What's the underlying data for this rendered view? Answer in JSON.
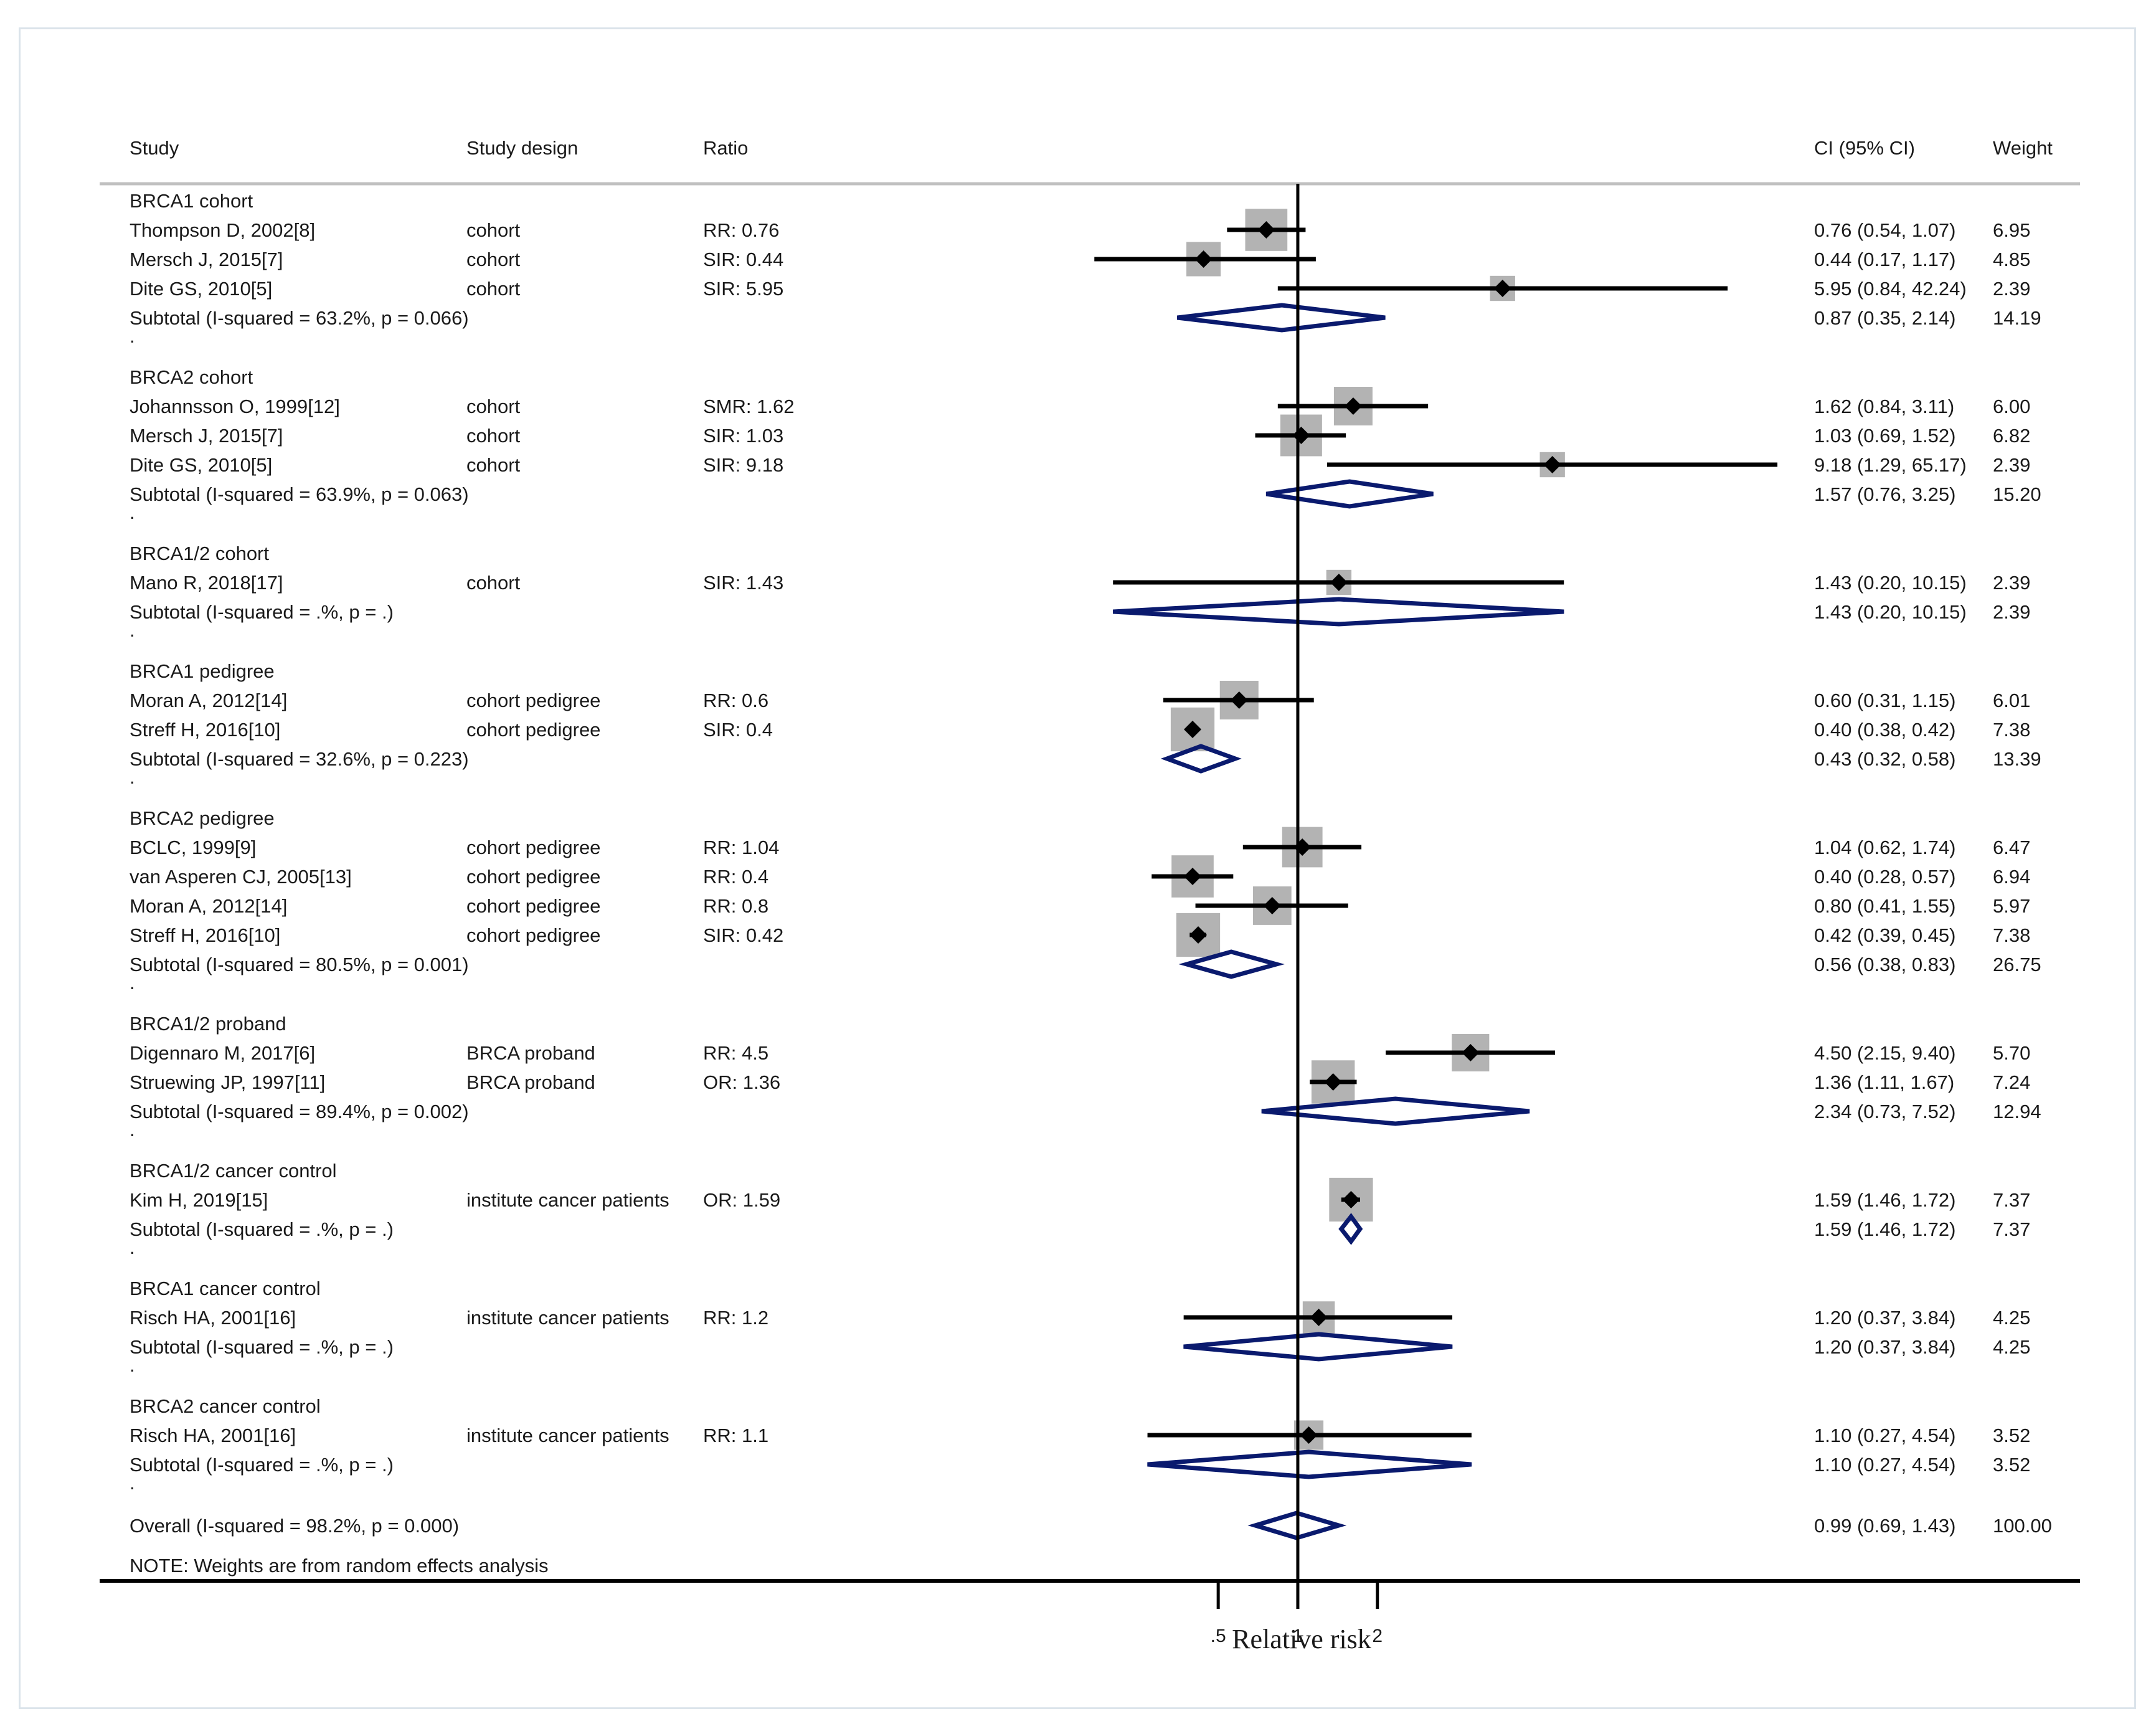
{
  "chart_data": {
    "type": "forest",
    "columns": {
      "study": "Study",
      "design": "Study design",
      "ratio": "Ratio",
      "ci": "CI (95% CI)",
      "weight": "Weight"
    },
    "xlabel": "Relative risk",
    "x_ticks": [
      {
        "value": 0.5,
        "label": ".5"
      },
      {
        "value": 1,
        "label": "1"
      },
      {
        "value": 2,
        "label": "2"
      }
    ],
    "xlim": [
      0.133,
      73
    ],
    "null_line": 1,
    "note": "NOTE: Weights are from random effects analysis",
    "colors": {
      "text": "#1a1a1a",
      "line": "#000000",
      "box": "#b3b3b3",
      "diamond": "#0a1a6e",
      "rule": "#c0c0c0"
    },
    "groups": [
      {
        "name": "BRCA1 cohort",
        "studies": [
          {
            "study": "Thompson D, 2002[8]",
            "design": "cohort",
            "ratio": "RR: 0.76",
            "est": 0.76,
            "lo": 0.54,
            "hi": 1.07,
            "ci": "0.76 (0.54, 1.07)",
            "weight": "6.95"
          },
          {
            "study": "Mersch J, 2015[7]",
            "design": "cohort",
            "ratio": "SIR: 0.44",
            "est": 0.44,
            "lo": 0.17,
            "hi": 1.17,
            "ci": "0.44 (0.17, 1.17)",
            "weight": "4.85"
          },
          {
            "study": "Dite GS, 2010[5]",
            "design": "cohort",
            "ratio": "SIR: 5.95",
            "est": 5.95,
            "lo": 0.84,
            "hi": 42.24,
            "ci": "5.95 (0.84, 42.24)",
            "weight": "2.39"
          }
        ],
        "subtotal": {
          "label": "Subtotal   (I-squared = 63.2%, p = 0.066)",
          "est": 0.87,
          "lo": 0.35,
          "hi": 2.14,
          "ci": "0.87 (0.35, 2.14)",
          "weight": "14.19"
        }
      },
      {
        "name": "BRCA2 cohort",
        "studies": [
          {
            "study": "Johannsson O, 1999[12]",
            "design": "cohort",
            "ratio": "SMR: 1.62",
            "est": 1.62,
            "lo": 0.84,
            "hi": 3.11,
            "ci": "1.62 (0.84, 3.11)",
            "weight": "6.00"
          },
          {
            "study": "Mersch J, 2015[7]",
            "design": "cohort",
            "ratio": "SIR: 1.03",
            "est": 1.03,
            "lo": 0.69,
            "hi": 1.52,
            "ci": "1.03 (0.69, 1.52)",
            "weight": "6.82"
          },
          {
            "study": "Dite GS, 2010[5]",
            "design": "cohort",
            "ratio": "SIR: 9.18",
            "est": 9.18,
            "lo": 1.29,
            "hi": 65.17,
            "ci": "9.18 (1.29, 65.17)",
            "weight": "2.39"
          }
        ],
        "subtotal": {
          "label": "Subtotal   (I-squared = 63.9%, p = 0.063)",
          "est": 1.57,
          "lo": 0.76,
          "hi": 3.25,
          "ci": "1.57 (0.76, 3.25)",
          "weight": "15.20"
        }
      },
      {
        "name": "BRCA1/2 cohort",
        "studies": [
          {
            "study": "Mano R, 2018[17]",
            "design": "cohort",
            "ratio": "SIR: 1.43",
            "est": 1.43,
            "lo": 0.2,
            "hi": 10.15,
            "ci": "1.43 (0.20, 10.15)",
            "weight": "2.39"
          }
        ],
        "subtotal": {
          "label": "Subtotal   (I-squared = .%, p = .)",
          "est": 1.43,
          "lo": 0.2,
          "hi": 10.15,
          "ci": "1.43 (0.20, 10.15)",
          "weight": "2.39"
        }
      },
      {
        "name": "BRCA1 pedigree",
        "studies": [
          {
            "study": "Moran A, 2012[14]",
            "design": "cohort pedigree",
            "ratio": "RR: 0.6",
            "est": 0.6,
            "lo": 0.31,
            "hi": 1.15,
            "ci": "0.60 (0.31, 1.15)",
            "weight": "6.01"
          },
          {
            "study": "Streff H, 2016[10]",
            "design": "cohort pedigree",
            "ratio": "SIR: 0.4",
            "est": 0.4,
            "lo": 0.38,
            "hi": 0.42,
            "ci": "0.40 (0.38, 0.42)",
            "weight": "7.38"
          }
        ],
        "subtotal": {
          "label": "Subtotal   (I-squared = 32.6%, p = 0.223)",
          "est": 0.43,
          "lo": 0.32,
          "hi": 0.58,
          "ci": "0.43 (0.32, 0.58)",
          "weight": "13.39"
        }
      },
      {
        "name": "BRCA2 pedigree",
        "studies": [
          {
            "study": "BCLC, 1999[9]",
            "design": "cohort pedigree",
            "ratio": "RR: 1.04",
            "est": 1.04,
            "lo": 0.62,
            "hi": 1.74,
            "ci": "1.04 (0.62, 1.74)",
            "weight": "6.47"
          },
          {
            "study": "van Asperen CJ, 2005[13]",
            "design": "cohort pedigree",
            "ratio": "RR: 0.4",
            "est": 0.4,
            "lo": 0.28,
            "hi": 0.57,
            "ci": "0.40 (0.28, 0.57)",
            "weight": "6.94"
          },
          {
            "study": "Moran A, 2012[14]",
            "design": "cohort pedigree",
            "ratio": "RR: 0.8",
            "est": 0.8,
            "lo": 0.41,
            "hi": 1.55,
            "ci": "0.80 (0.41, 1.55)",
            "weight": "5.97"
          },
          {
            "study": "Streff H, 2016[10]",
            "design": "cohort pedigree",
            "ratio": "SIR: 0.42",
            "est": 0.42,
            "lo": 0.39,
            "hi": 0.45,
            "ci": "0.42 (0.39, 0.45)",
            "weight": "7.38"
          }
        ],
        "subtotal": {
          "label": "Subtotal   (I-squared = 80.5%, p = 0.001)",
          "est": 0.56,
          "lo": 0.38,
          "hi": 0.83,
          "ci": "0.56 (0.38, 0.83)",
          "weight": "26.75"
        }
      },
      {
        "name": "BRCA1/2 proband",
        "studies": [
          {
            "study": "Digennaro M, 2017[6]",
            "design": "BRCA proband",
            "ratio": "RR: 4.5",
            "est": 4.5,
            "lo": 2.15,
            "hi": 9.4,
            "ci": "4.50 (2.15, 9.40)",
            "weight": "5.70"
          },
          {
            "study": "Struewing JP, 1997[11]",
            "design": "BRCA proband",
            "ratio": "OR: 1.36",
            "est": 1.36,
            "lo": 1.11,
            "hi": 1.67,
            "ci": "1.36 (1.11, 1.67)",
            "weight": "7.24"
          }
        ],
        "subtotal": {
          "label": "Subtotal   (I-squared = 89.4%, p = 0.002)",
          "est": 2.34,
          "lo": 0.73,
          "hi": 7.52,
          "ci": "2.34 (0.73, 7.52)",
          "weight": "12.94"
        }
      },
      {
        "name": "BRCA1/2 cancer control",
        "studies": [
          {
            "study": "Kim H, 2019[15]",
            "design": "institute cancer patients",
            "ratio": "OR: 1.59",
            "est": 1.59,
            "lo": 1.46,
            "hi": 1.72,
            "ci": "1.59 (1.46, 1.72)",
            "weight": "7.37"
          }
        ],
        "subtotal": {
          "label": "Subtotal   (I-squared = .%, p = .)",
          "est": 1.59,
          "lo": 1.46,
          "hi": 1.72,
          "ci": "1.59 (1.46, 1.72)",
          "weight": "7.37"
        }
      },
      {
        "name": "BRCA1 cancer control",
        "studies": [
          {
            "study": "Risch HA, 2001[16]",
            "design": "institute cancer patients",
            "ratio": "RR: 1.2",
            "est": 1.2,
            "lo": 0.37,
            "hi": 3.84,
            "ci": "1.20 (0.37, 3.84)",
            "weight": "4.25"
          }
        ],
        "subtotal": {
          "label": "Subtotal   (I-squared = .%, p = .)",
          "est": 1.2,
          "lo": 0.37,
          "hi": 3.84,
          "ci": "1.20 (0.37, 3.84)",
          "weight": "4.25"
        }
      },
      {
        "name": "BRCA2 cancer control",
        "studies": [
          {
            "study": "Risch HA, 2001[16]",
            "design": "institute cancer patients",
            "ratio": "RR: 1.1",
            "est": 1.1,
            "lo": 0.27,
            "hi": 4.54,
            "ci": "1.10 (0.27, 4.54)",
            "weight": "3.52"
          }
        ],
        "subtotal": {
          "label": "Subtotal   (I-squared = .%, p = .)",
          "est": 1.1,
          "lo": 0.27,
          "hi": 4.54,
          "ci": "1.10 (0.27, 4.54)",
          "weight": "3.52"
        }
      }
    ],
    "overall": {
      "label": "Overall   (I-squared = 98.2%, p = 0.000)",
      "est": 0.99,
      "lo": 0.69,
      "hi": 1.43,
      "ci": "0.99 (0.69, 1.43)",
      "weight": "100.00"
    },
    "separator": "."
  }
}
